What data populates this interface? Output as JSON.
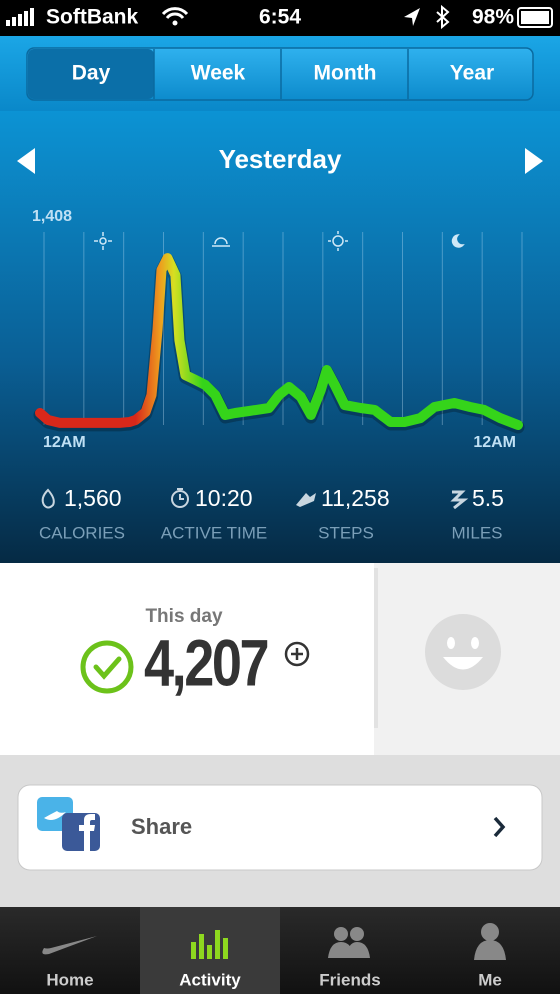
{
  "status_bar": {
    "carrier": "SoftBank",
    "time": "6:54",
    "battery": "98%"
  },
  "tabs": [
    "Day",
    "Week",
    "Month",
    "Year"
  ],
  "period_title": "Yesterday",
  "chart_data": {
    "type": "line",
    "x": [
      0,
      0.4,
      1,
      2,
      3,
      4,
      4.5,
      4.8,
      5.3,
      5.6,
      5.9,
      6.1,
      6.4,
      6.8,
      7.0,
      7.3,
      7.8,
      8.3,
      8.8,
      9.3,
      9.8,
      10.5,
      11.5,
      12.0,
      12.5,
      13.1,
      13.6,
      14.1,
      14.4,
      14.8,
      15.3,
      16.1,
      16.8,
      17.6,
      18.3,
      19.1,
      19.8,
      20.8,
      21.6,
      22.3,
      23.1,
      24
    ],
    "values": [
      81,
      34,
      14,
      14,
      14,
      14,
      20,
      34,
      88,
      203,
      643,
      1049,
      1130,
      1015,
      575,
      338,
      305,
      271,
      203,
      68,
      81,
      95,
      115,
      203,
      257,
      190,
      68,
      237,
      372,
      271,
      135,
      115,
      102,
      20,
      20,
      47,
      122,
      149,
      122,
      102,
      47,
      0
    ],
    "xlim": [
      0,
      24
    ],
    "ylim": [
      0,
      1408
    ],
    "yticks": [
      {
        "value": 1408,
        "label": "1,408"
      }
    ],
    "xticks": [
      {
        "value": 0,
        "label": "12AM"
      },
      {
        "value": 24,
        "label": "12AM"
      }
    ]
  },
  "stats": [
    {
      "value": "1,560",
      "label": "CALORIES"
    },
    {
      "value": "10:20",
      "label": "ACTIVE TIME"
    },
    {
      "value": "11,258",
      "label": "STEPS"
    },
    {
      "value": "5.5",
      "label": "MILES"
    }
  ],
  "summary": {
    "label": "This day",
    "fuel": "4,207"
  },
  "share": "Share",
  "tab_bar": [
    "Home",
    "Activity",
    "Friends",
    "Me"
  ]
}
